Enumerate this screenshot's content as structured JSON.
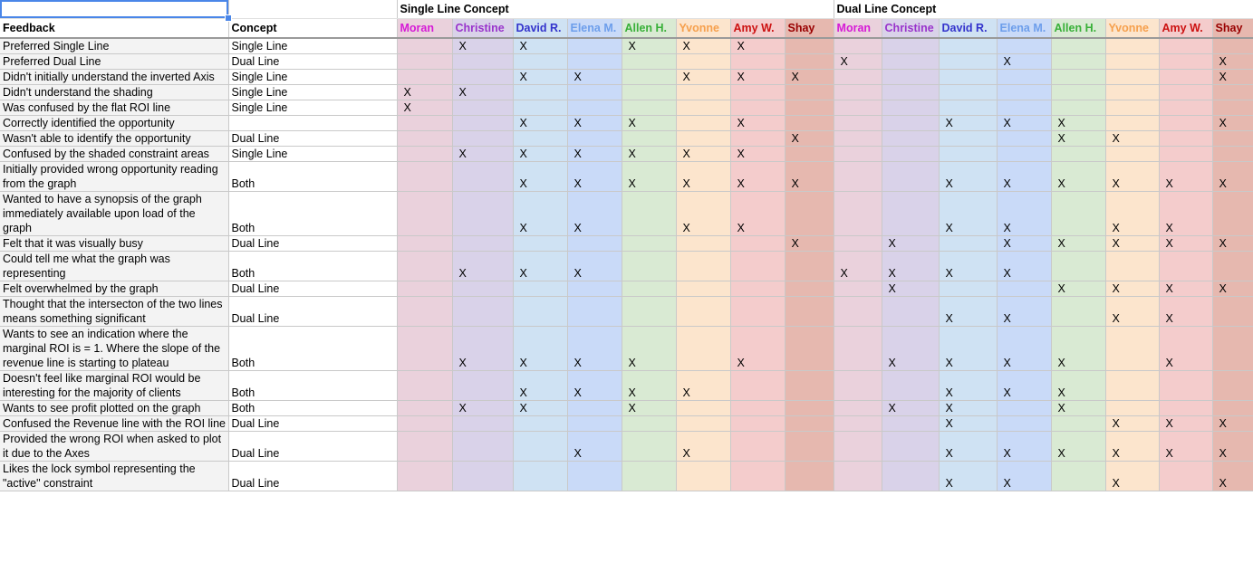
{
  "headers": {
    "group1": "Single Line Concept",
    "group2": "Dual Line Concept",
    "feedback": "Feedback",
    "concept": "Concept"
  },
  "people": [
    {
      "name": "Moran",
      "color": "#d61ad6",
      "bg": "#ead1dc"
    },
    {
      "name": "Christine",
      "color": "#9933cc",
      "bg": "#d9d2e9"
    },
    {
      "name": "David R.",
      "color": "#3333cc",
      "bg": "#cfe2f3"
    },
    {
      "name": "Elena M.",
      "color": "#6d9eeb",
      "bg": "#c9daf8"
    },
    {
      "name": "Allen H.",
      "color": "#38b038",
      "bg": "#d9ead3"
    },
    {
      "name": "Yvonne",
      "color": "#f6a04d",
      "bg": "#fce5cd"
    },
    {
      "name": "Amy W.",
      "color": "#cc1111",
      "bg": "#f4cccc"
    },
    {
      "name": "Shay",
      "color": "#990000",
      "bg": "#e6b8af"
    }
  ],
  "rows": [
    {
      "feedback": "Preferred Single Line",
      "concept": "Single Line",
      "marks": [
        0,
        1,
        1,
        0,
        1,
        1,
        1,
        0,
        0,
        0,
        0,
        0,
        0,
        0,
        0,
        0
      ]
    },
    {
      "feedback": "Preferred Dual Line",
      "concept": "Dual Line",
      "marks": [
        0,
        0,
        0,
        0,
        0,
        0,
        0,
        0,
        1,
        0,
        0,
        1,
        0,
        0,
        0,
        1
      ]
    },
    {
      "feedback": "Didn't initially understand the inverted Axis",
      "concept": "Single Line",
      "marks": [
        0,
        0,
        1,
        1,
        0,
        1,
        1,
        1,
        0,
        0,
        0,
        0,
        0,
        0,
        0,
        1
      ]
    },
    {
      "feedback": "Didn't understand the shading",
      "concept": "Single Line",
      "marks": [
        1,
        1,
        0,
        0,
        0,
        0,
        0,
        0,
        0,
        0,
        0,
        0,
        0,
        0,
        0,
        0
      ]
    },
    {
      "feedback": "Was confused by the flat ROI line",
      "concept": "Single Line",
      "marks": [
        1,
        0,
        0,
        0,
        0,
        0,
        0,
        0,
        0,
        0,
        0,
        0,
        0,
        0,
        0,
        0
      ]
    },
    {
      "feedback": "Correctly identified the opportunity",
      "concept": "",
      "marks": [
        0,
        0,
        1,
        1,
        1,
        0,
        1,
        0,
        0,
        0,
        1,
        1,
        1,
        0,
        0,
        1
      ]
    },
    {
      "feedback": "Wasn't able to identify the opportunity",
      "concept": "Dual Line",
      "marks": [
        0,
        0,
        0,
        0,
        0,
        0,
        0,
        1,
        0,
        0,
        0,
        0,
        1,
        1,
        0,
        0
      ]
    },
    {
      "feedback": "Confused by the shaded constraint areas",
      "concept": "Single Line",
      "marks": [
        0,
        1,
        1,
        1,
        1,
        1,
        1,
        0,
        0,
        0,
        0,
        0,
        0,
        0,
        0,
        0
      ]
    },
    {
      "feedback": "Initially provided wrong opportunity reading from the graph",
      "concept": "Both",
      "marks": [
        0,
        0,
        1,
        1,
        1,
        1,
        1,
        1,
        0,
        0,
        1,
        1,
        1,
        1,
        1,
        1
      ]
    },
    {
      "feedback": "Wanted to have a synopsis of the graph immediately available upon load of the graph",
      "concept": "Both",
      "marks": [
        0,
        0,
        1,
        1,
        0,
        1,
        1,
        0,
        0,
        0,
        1,
        1,
        0,
        1,
        1,
        0
      ]
    },
    {
      "feedback": "Felt that it was visually busy",
      "concept": "Dual Line",
      "marks": [
        0,
        0,
        0,
        0,
        0,
        0,
        0,
        1,
        0,
        1,
        0,
        1,
        1,
        1,
        1,
        1
      ]
    },
    {
      "feedback": "Could tell me what the graph was representing",
      "concept": "Both",
      "marks": [
        0,
        1,
        1,
        1,
        0,
        0,
        0,
        0,
        1,
        1,
        1,
        1,
        0,
        0,
        0,
        0
      ]
    },
    {
      "feedback": "Felt overwhelmed by the graph",
      "concept": "Dual Line",
      "marks": [
        0,
        0,
        0,
        0,
        0,
        0,
        0,
        0,
        0,
        1,
        0,
        0,
        1,
        1,
        1,
        1
      ]
    },
    {
      "feedback": "Thought that the intersecton of the two lines means something significant",
      "concept": "Dual Line",
      "marks": [
        0,
        0,
        0,
        0,
        0,
        0,
        0,
        0,
        0,
        0,
        1,
        1,
        0,
        1,
        1,
        0
      ]
    },
    {
      "feedback": "Wants to see an indication where the marginal ROI is = 1. Where the slope of the revenue line is starting to plateau",
      "concept": "Both",
      "marks": [
        0,
        1,
        1,
        1,
        1,
        0,
        1,
        0,
        0,
        1,
        1,
        1,
        1,
        0,
        1,
        0
      ]
    },
    {
      "feedback": "Doesn't feel like marginal ROI would be interesting for the majority of clients",
      "concept": "Both",
      "marks": [
        0,
        0,
        1,
        1,
        1,
        1,
        0,
        0,
        0,
        0,
        1,
        1,
        1,
        0,
        0,
        0
      ]
    },
    {
      "feedback": "Wants to see profit plotted on the graph",
      "concept": "Both",
      "marks": [
        0,
        1,
        1,
        0,
        1,
        0,
        0,
        0,
        0,
        1,
        1,
        0,
        1,
        0,
        0,
        0
      ]
    },
    {
      "feedback": "Confused the Revenue line with the ROI line",
      "concept": "Dual Line",
      "marks": [
        0,
        0,
        0,
        0,
        0,
        0,
        0,
        0,
        0,
        0,
        1,
        0,
        0,
        1,
        1,
        1
      ]
    },
    {
      "feedback": "Provided the wrong ROI when asked to plot it due to the Axes",
      "concept": "Dual Line",
      "marks": [
        0,
        0,
        0,
        1,
        0,
        1,
        0,
        0,
        0,
        0,
        1,
        1,
        1,
        1,
        1,
        1
      ]
    },
    {
      "feedback": "Likes the lock symbol representing the \"active\" constraint",
      "concept": "Dual Line",
      "marks": [
        0,
        0,
        0,
        0,
        0,
        0,
        0,
        0,
        0,
        0,
        1,
        1,
        0,
        1,
        0,
        1
      ]
    }
  ],
  "mark": "X"
}
